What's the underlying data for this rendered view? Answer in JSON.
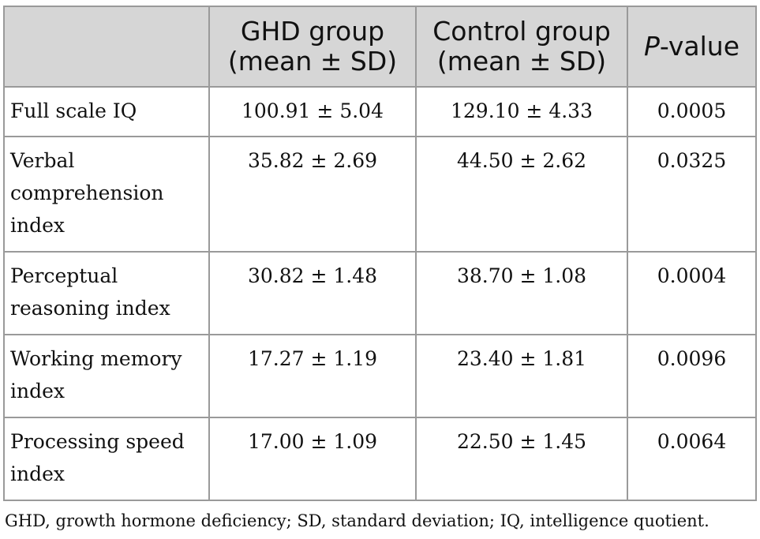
{
  "table": {
    "headers": {
      "label": "",
      "ghd_line1": "GHD group",
      "ghd_line2": "(mean ± SD)",
      "control_line1": "Control group",
      "control_line2": "(mean ± SD)",
      "p_italic": "P",
      "p_rest": "-value"
    },
    "rows": [
      {
        "label": "Full scale IQ",
        "ghd": "100.91 ± 5.04",
        "control": "129.10 ± 4.33",
        "p": "0.0005"
      },
      {
        "label": "Verbal comprehension index",
        "ghd": "35.82 ± 2.69",
        "control": "44.50 ± 2.62",
        "p": "0.0325"
      },
      {
        "label": "Perceptual reasoning index",
        "ghd": "30.82 ± 1.48",
        "control": "38.70 ± 1.08",
        "p": "0.0004"
      },
      {
        "label": "Working memory index",
        "ghd": "17.27 ± 1.19",
        "control": "23.40 ± 1.81",
        "p": "0.0096"
      },
      {
        "label": "Processing speed index",
        "ghd": "17.00 ± 1.09",
        "control": "22.50 ± 1.45",
        "p": "0.0064"
      }
    ]
  },
  "footnote": "GHD, growth hormone deficiency; SD, standard deviation; IQ, intelligence quotient."
}
